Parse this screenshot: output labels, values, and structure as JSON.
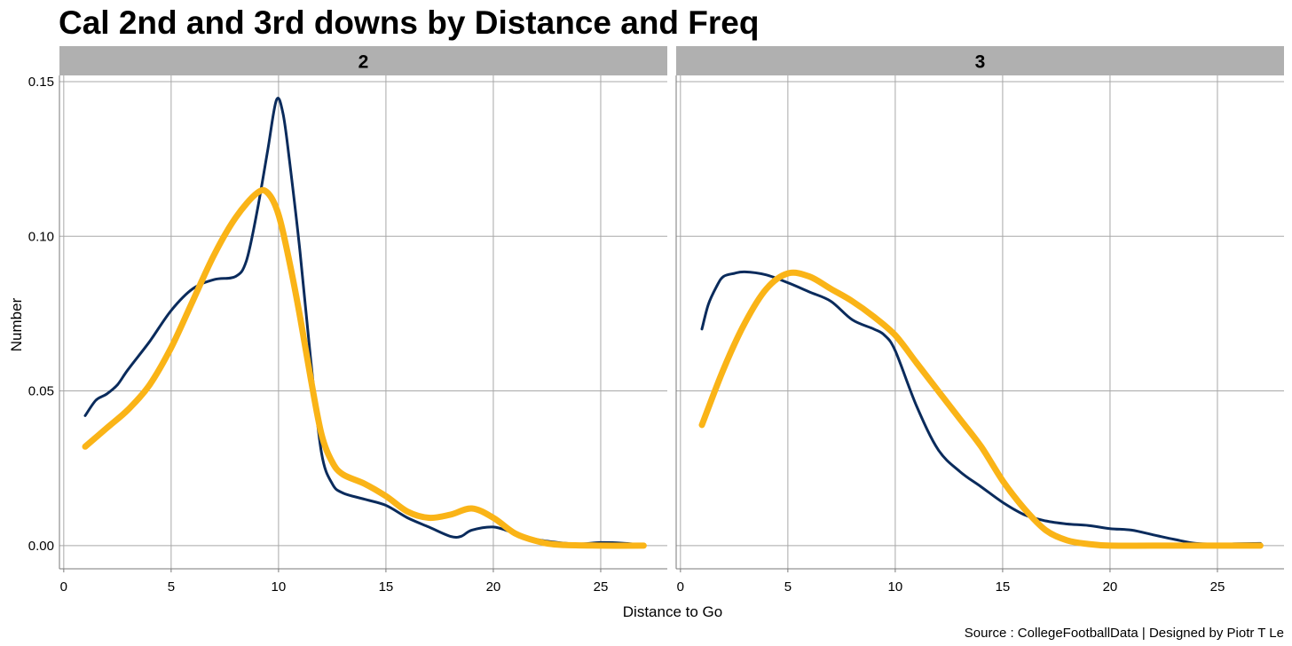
{
  "chart_data": {
    "type": "line",
    "title": "Cal 2nd and 3rd downs by Distance and Freq",
    "xlabel": "Distance to Go",
    "ylabel": "Number",
    "caption": "Source : CollegeFootballData | Designed by Piotr T Le",
    "xlim": [
      -0.2,
      28.1
    ],
    "ylim": [
      -0.0075,
      0.152
    ],
    "x_ticks": [
      0,
      5,
      10,
      15,
      20,
      25
    ],
    "y_ticks": [
      0.0,
      0.05,
      0.1,
      0.15
    ],
    "y_tick_labels": [
      "0.00",
      "0.05",
      "0.10",
      "0.15"
    ],
    "grid": true,
    "colors": {
      "navy": "#0a2b5c",
      "gold": "#fab417",
      "strip": "#b0b0b0",
      "grid": "#a8a8a8"
    },
    "panels": [
      {
        "label": "2",
        "series": [
          {
            "color": "navy",
            "width": "thin",
            "points": [
              [
                1,
                0.042
              ],
              [
                1.5,
                0.047
              ],
              [
                2,
                0.049
              ],
              [
                2.5,
                0.052
              ],
              [
                3,
                0.057
              ],
              [
                4,
                0.066
              ],
              [
                5,
                0.076
              ],
              [
                6,
                0.083
              ],
              [
                7,
                0.086
              ],
              [
                8,
                0.087
              ],
              [
                8.5,
                0.092
              ],
              [
                9,
                0.108
              ],
              [
                9.5,
                0.128
              ],
              [
                9.9,
                0.144
              ],
              [
                10.2,
                0.14
              ],
              [
                10.5,
                0.125
              ],
              [
                11,
                0.095
              ],
              [
                11.5,
                0.06
              ],
              [
                12,
                0.03
              ],
              [
                12.5,
                0.02
              ],
              [
                13,
                0.017
              ],
              [
                14,
                0.015
              ],
              [
                15,
                0.013
              ],
              [
                16,
                0.009
              ],
              [
                17,
                0.006
              ],
              [
                18,
                0.003
              ],
              [
                18.5,
                0.003
              ],
              [
                19,
                0.005
              ],
              [
                20,
                0.006
              ],
              [
                21,
                0.004
              ],
              [
                22,
                0.002
              ],
              [
                23,
                0.001
              ],
              [
                24,
                0.0005
              ],
              [
                25,
                0.001
              ],
              [
                26,
                0.0008
              ],
              [
                27,
                0.0002
              ]
            ]
          },
          {
            "color": "gold",
            "width": "thick",
            "points": [
              [
                1,
                0.032
              ],
              [
                2,
                0.038
              ],
              [
                3,
                0.044
              ],
              [
                4,
                0.052
              ],
              [
                5,
                0.064
              ],
              [
                6,
                0.079
              ],
              [
                7,
                0.094
              ],
              [
                8,
                0.106
              ],
              [
                9,
                0.114
              ],
              [
                9.5,
                0.114
              ],
              [
                10,
                0.107
              ],
              [
                10.5,
                0.092
              ],
              [
                11,
                0.074
              ],
              [
                11.5,
                0.054
              ],
              [
                12,
                0.036
              ],
              [
                12.5,
                0.027
              ],
              [
                13,
                0.023
              ],
              [
                14,
                0.02
              ],
              [
                15,
                0.016
              ],
              [
                16,
                0.011
              ],
              [
                17,
                0.009
              ],
              [
                18,
                0.01
              ],
              [
                19,
                0.012
              ],
              [
                20,
                0.009
              ],
              [
                21,
                0.004
              ],
              [
                22,
                0.0015
              ],
              [
                23,
                0.0003
              ],
              [
                25,
                0.0
              ],
              [
                27,
                0.0
              ]
            ]
          }
        ]
      },
      {
        "label": "3",
        "series": [
          {
            "color": "navy",
            "width": "thin",
            "points": [
              [
                1,
                0.07
              ],
              [
                1.3,
                0.078
              ],
              [
                1.7,
                0.084
              ],
              [
                2,
                0.087
              ],
              [
                2.5,
                0.088
              ],
              [
                3,
                0.0885
              ],
              [
                4,
                0.0875
              ],
              [
                5,
                0.085
              ],
              [
                6,
                0.082
              ],
              [
                7,
                0.079
              ],
              [
                8,
                0.073
              ],
              [
                9,
                0.07
              ],
              [
                9.5,
                0.068
              ],
              [
                10,
                0.063
              ],
              [
                11,
                0.045
              ],
              [
                12,
                0.031
              ],
              [
                13,
                0.024
              ],
              [
                14,
                0.019
              ],
              [
                15,
                0.014
              ],
              [
                16,
                0.01
              ],
              [
                17,
                0.008
              ],
              [
                18,
                0.007
              ],
              [
                19,
                0.0065
              ],
              [
                20,
                0.0055
              ],
              [
                21,
                0.005
              ],
              [
                22,
                0.0035
              ],
              [
                23,
                0.002
              ],
              [
                24,
                0.0007
              ],
              [
                25,
                0.0005
              ],
              [
                26,
                0.0006
              ],
              [
                27,
                0.0007
              ]
            ]
          },
          {
            "color": "gold",
            "width": "thick",
            "points": [
              [
                1,
                0.039
              ],
              [
                2,
                0.057
              ],
              [
                3,
                0.072
              ],
              [
                4,
                0.083
              ],
              [
                5,
                0.088
              ],
              [
                6,
                0.087
              ],
              [
                7,
                0.083
              ],
              [
                8,
                0.079
              ],
              [
                9,
                0.074
              ],
              [
                10,
                0.068
              ],
              [
                11,
                0.059
              ],
              [
                12,
                0.05
              ],
              [
                13,
                0.041
              ],
              [
                14,
                0.032
              ],
              [
                15,
                0.021
              ],
              [
                16,
                0.012
              ],
              [
                17,
                0.005
              ],
              [
                18,
                0.0017
              ],
              [
                19,
                0.0005
              ],
              [
                20,
                0.0
              ],
              [
                22,
                0.0
              ],
              [
                25,
                0.0
              ],
              [
                27,
                0.0
              ]
            ]
          }
        ]
      }
    ]
  }
}
